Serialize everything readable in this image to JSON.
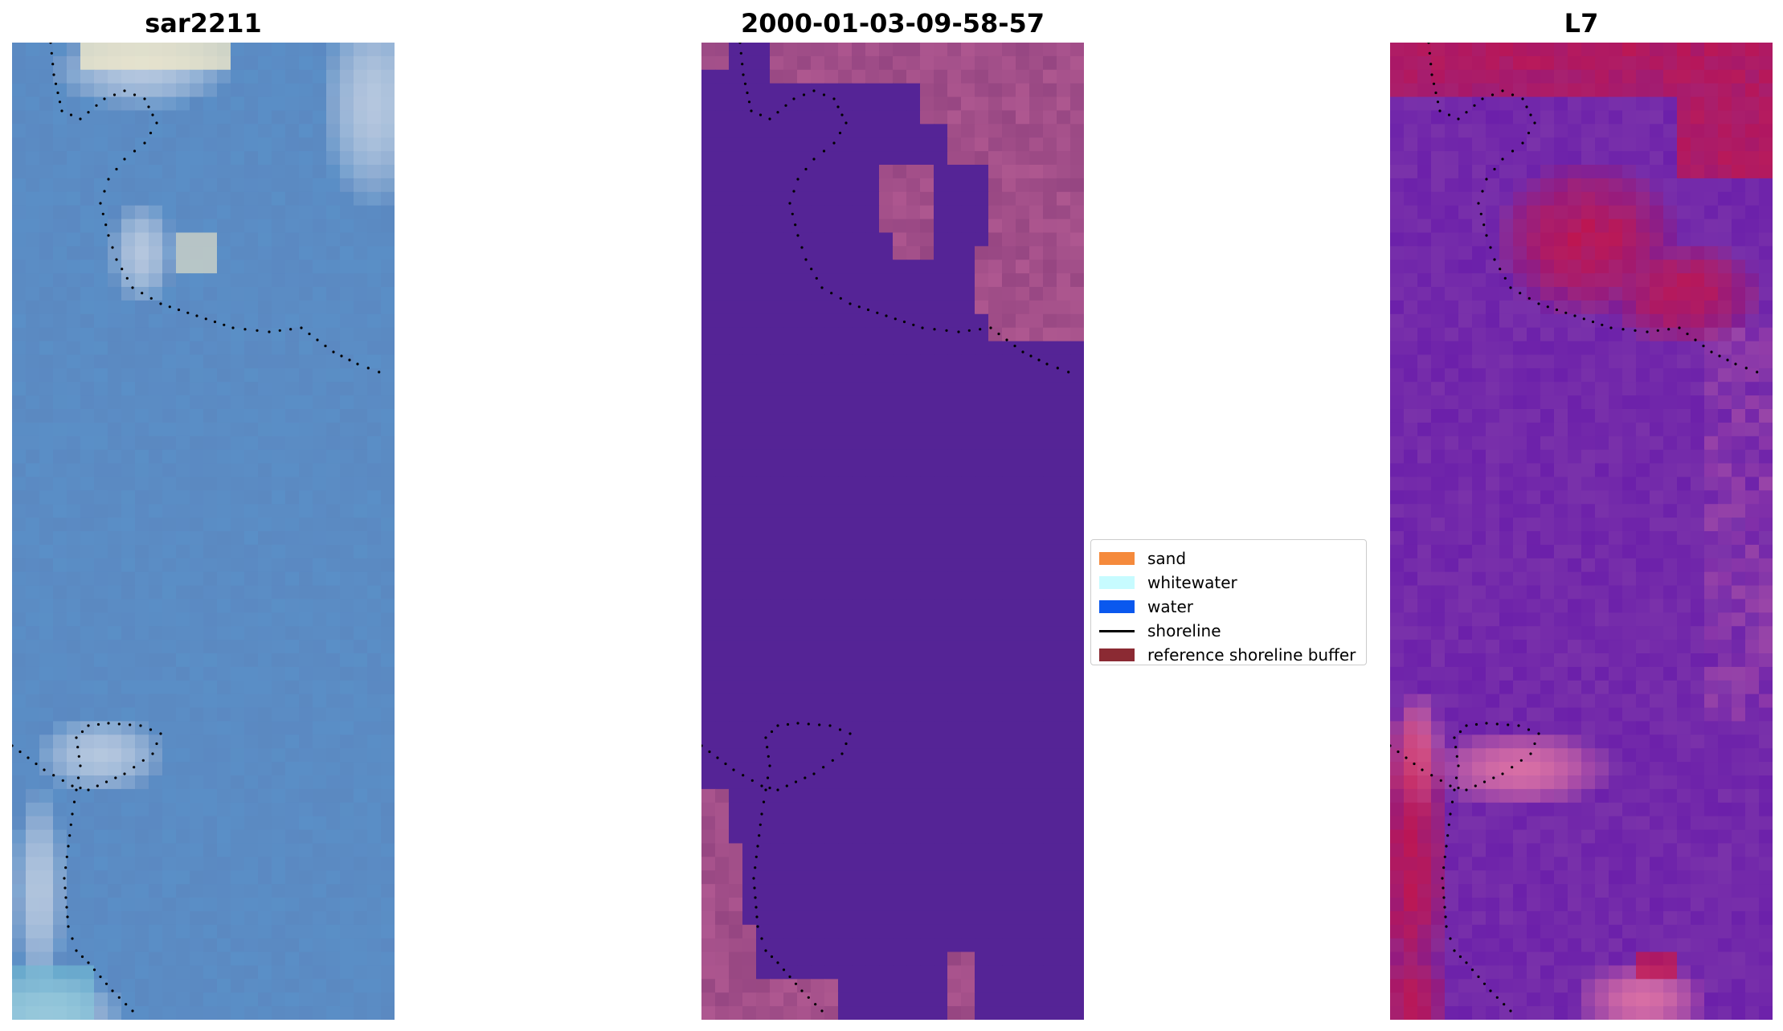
{
  "panels": [
    {
      "title": "sar2211",
      "name": "rgb-image-panel",
      "base": "#5b84bd"
    },
    {
      "title": "2000-01-03-09-58-57",
      "name": "classified-image-panel",
      "base": "#552496"
    },
    {
      "title": "L7",
      "name": "index-image-panel",
      "base": "#7a32aa"
    }
  ],
  "legend": {
    "items": [
      {
        "label": "sand",
        "color": "#f58a3c",
        "kind": "patch"
      },
      {
        "label": "whitewater",
        "color": "#c7fbff",
        "kind": "patch"
      },
      {
        "label": "water",
        "color": "#0a58ee",
        "kind": "patch"
      },
      {
        "label": "shoreline",
        "color": "#000000",
        "kind": "line"
      },
      {
        "label": "reference shoreline buffer",
        "color": "#8b2a33",
        "kind": "patch"
      }
    ]
  }
}
